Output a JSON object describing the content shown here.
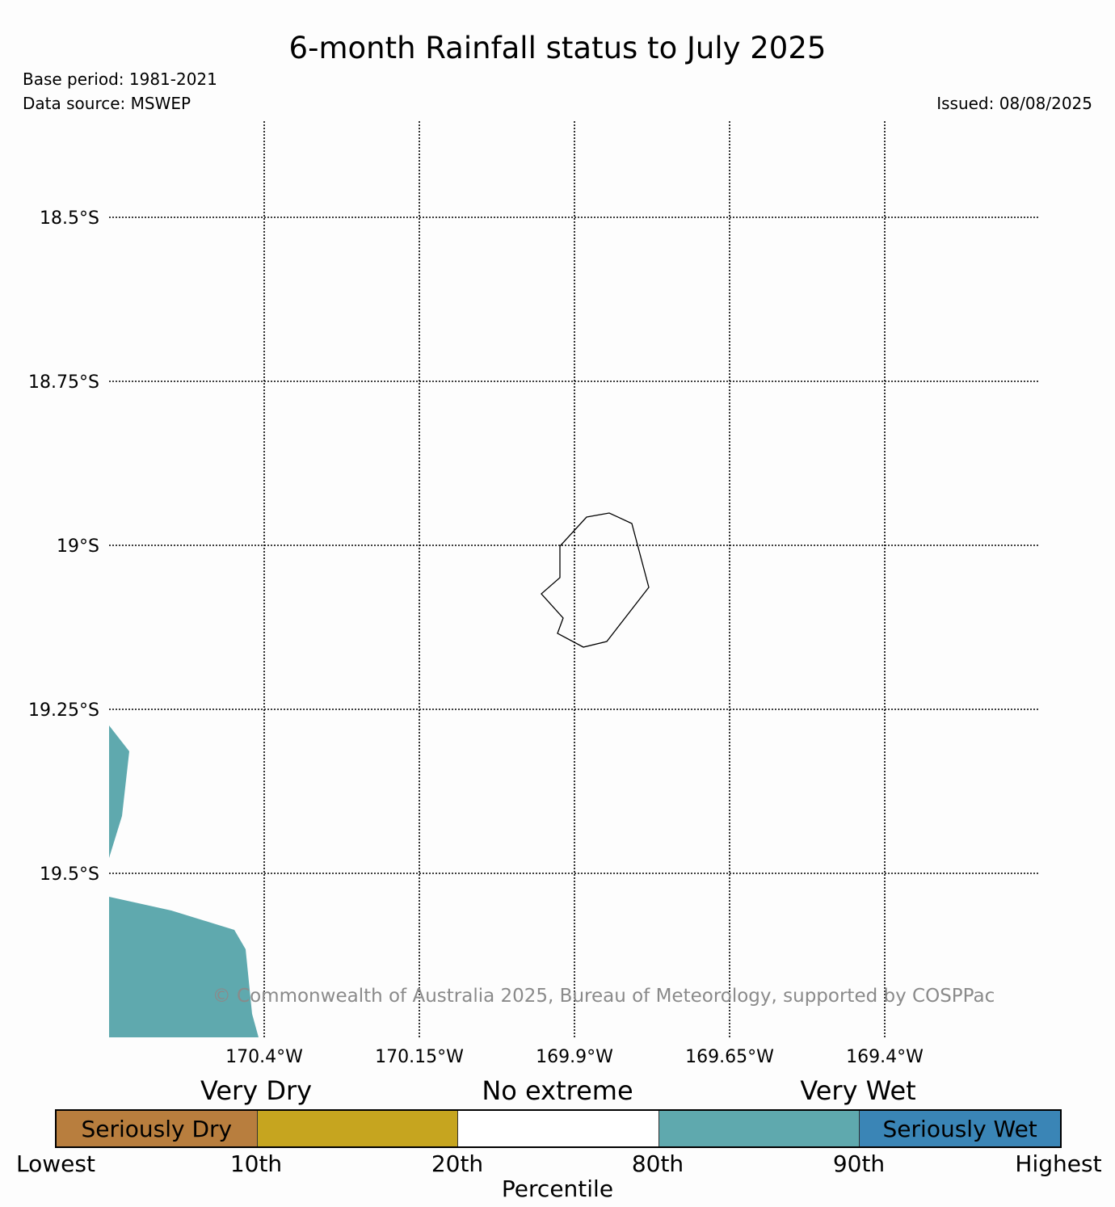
{
  "title": "6-month Rainfall status to July 2025",
  "base_period": "Base period: 1981-2021",
  "data_source": "Data source: MSWEP",
  "issued": "Issued: 08/08/2025",
  "copyright": "© Commonwealth of Australia 2025, Bureau of Meteorology, supported by COSPPac",
  "map": {
    "lon_labels": [
      "170.4°W",
      "170.15°W",
      "169.9°W",
      "169.65°W",
      "169.4°W"
    ],
    "lat_labels": [
      "18.5°S",
      "18.75°S",
      "19°S",
      "19.25°S",
      "19.5°S"
    ],
    "gridlines": "dotted",
    "wet_area_color": "#5fa9ae",
    "island_outline_color": "#000000"
  },
  "legend": {
    "groups": [
      "Very Dry",
      "No extreme",
      "Very Wet"
    ],
    "categories": [
      {
        "label": "Seriously Dry",
        "color": "#b87e3e"
      },
      {
        "label": "",
        "color": "#c6a51f"
      },
      {
        "label": "",
        "color": "#ffffff"
      },
      {
        "label": "",
        "color": "#5fa9ae"
      },
      {
        "label": "Seriously Wet",
        "color": "#3a85b6"
      }
    ],
    "ticks": [
      "Lowest",
      "10th",
      "20th",
      "80th",
      "90th",
      "Highest"
    ],
    "axis_label": "Percentile"
  }
}
